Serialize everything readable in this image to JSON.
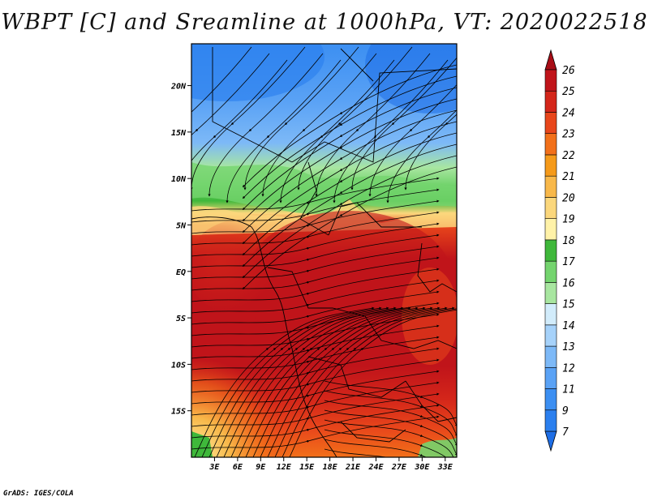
{
  "title": "WBPT [C] and Sreamline at 1000hPa, VT: 2020022518",
  "credit": "GrADS: IGES/COLA",
  "map": {
    "variable": "Wet-bulb potential temperature",
    "units": "C",
    "level": "1000hPa",
    "valid_time": "2020022518",
    "lon_range": [
      0,
      34.5
    ],
    "lat_range": [
      -20,
      24.5
    ],
    "x_ticks": [
      {
        "lon": 3,
        "label": "3E"
      },
      {
        "lon": 6,
        "label": "6E"
      },
      {
        "lon": 9,
        "label": "9E"
      },
      {
        "lon": 12,
        "label": "12E"
      },
      {
        "lon": 15,
        "label": "15E"
      },
      {
        "lon": 18,
        "label": "18E"
      },
      {
        "lon": 21,
        "label": "21E"
      },
      {
        "lon": 24,
        "label": "24E"
      },
      {
        "lon": 27,
        "label": "27E"
      },
      {
        "lon": 30,
        "label": "30E"
      },
      {
        "lon": 33,
        "label": "33E"
      }
    ],
    "y_ticks": [
      {
        "lat": 20,
        "label": "20N"
      },
      {
        "lat": 15,
        "label": "15N"
      },
      {
        "lat": 10,
        "label": "10N"
      },
      {
        "lat": 5,
        "label": "5N"
      },
      {
        "lat": 0,
        "label": "EQ"
      },
      {
        "lat": -5,
        "label": "5S"
      },
      {
        "lat": -10,
        "label": "10S"
      },
      {
        "lat": -15,
        "label": "15S"
      }
    ],
    "colorbar": {
      "labels": [
        "7",
        "9",
        "11",
        "12",
        "13",
        "14",
        "15",
        "16",
        "17",
        "18",
        "19",
        "20",
        "21",
        "22",
        "23",
        "24",
        "25",
        "26"
      ],
      "colors": [
        "#1e6ee6",
        "#2b7fee",
        "#3c8ff2",
        "#5aa2f5",
        "#7db9f7",
        "#a6d2fa",
        "#d2ecfb",
        "#a8e6a0",
        "#74d46e",
        "#3fb83b",
        "#fff2a8",
        "#fbd77c",
        "#f8b84a",
        "#f59a1a",
        "#f2701a",
        "#e8461b",
        "#d4261a",
        "#c0141a",
        "#a80d16"
      ]
    }
  }
}
